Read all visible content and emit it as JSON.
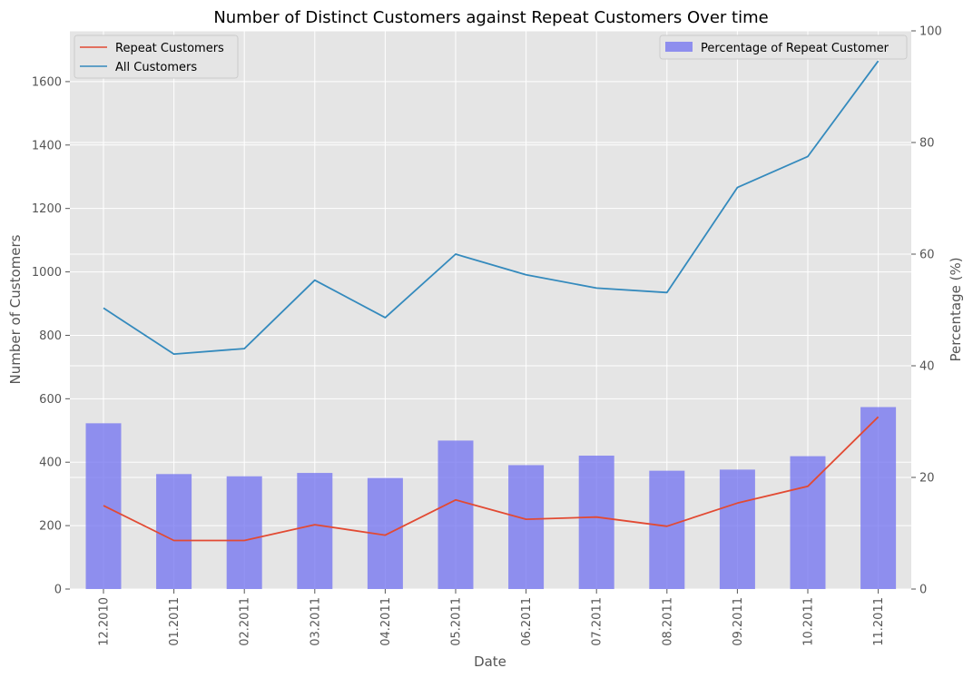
{
  "chart_data": {
    "type": "bar",
    "title": "Number of Distinct Customers against Repeat Customers Over time",
    "xlabel": "Date",
    "ylabel": "Number of Customers",
    "y2label": "Percentage (%)",
    "categories": [
      "12.2010",
      "01.2011",
      "02.2011",
      "03.2011",
      "04.2011",
      "05.2011",
      "06.2011",
      "07.2011",
      "08.2011",
      "09.2011",
      "10.2011",
      "11.2011"
    ],
    "ylim": [
      0,
      1760
    ],
    "y2lim": [
      0,
      100
    ],
    "yticks": [
      0,
      200,
      400,
      600,
      800,
      1000,
      1200,
      1400,
      1600
    ],
    "y2ticks": [
      0,
      20,
      40,
      60,
      80,
      100
    ],
    "grid": true,
    "series": [
      {
        "name": "Repeat Customers",
        "type": "line",
        "axis": "left",
        "color": "#E24A33",
        "values": [
          263,
          153,
          153,
          203,
          170,
          281,
          220,
          227,
          198,
          271,
          324,
          543
        ]
      },
      {
        "name": "All Customers",
        "type": "line",
        "axis": "left",
        "color": "#348ABD",
        "values": [
          886,
          741,
          758,
          974,
          856,
          1056,
          991,
          949,
          935,
          1266,
          1364,
          1665
        ]
      },
      {
        "name": "Percentage of Repeat Customer",
        "type": "bar",
        "axis": "right",
        "color": "#7070F0",
        "values": [
          29.7,
          20.6,
          20.2,
          20.8,
          19.9,
          26.6,
          22.2,
          23.9,
          21.2,
          21.4,
          23.8,
          32.6
        ]
      }
    ],
    "legend_left": {
      "position": "top-left"
    },
    "legend_right": {
      "position": "top-right"
    }
  }
}
